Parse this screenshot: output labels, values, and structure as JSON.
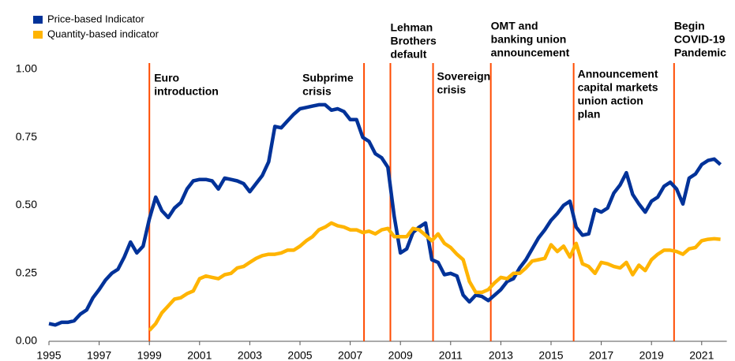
{
  "chart_data": {
    "type": "line",
    "x": [
      1995,
      1995.25,
      1995.5,
      1995.75,
      1996,
      1996.25,
      1996.5,
      1996.75,
      1997,
      1997.25,
      1997.5,
      1997.75,
      1998,
      1998.25,
      1998.5,
      1998.75,
      1999,
      1999.25,
      1999.5,
      1999.75,
      2000,
      2000.25,
      2000.5,
      2000.75,
      2001,
      2001.25,
      2001.5,
      2001.75,
      2002,
      2002.25,
      2002.5,
      2002.75,
      2003,
      2003.25,
      2003.5,
      2003.75,
      2004,
      2004.25,
      2004.5,
      2004.75,
      2005,
      2005.25,
      2005.5,
      2005.75,
      2006,
      2006.25,
      2006.5,
      2006.75,
      2007,
      2007.25,
      2007.5,
      2007.75,
      2008,
      2008.25,
      2008.5,
      2008.75,
      2009,
      2009.25,
      2009.5,
      2009.75,
      2010,
      2010.25,
      2010.5,
      2010.75,
      2011,
      2011.25,
      2011.5,
      2011.75,
      2012,
      2012.25,
      2012.5,
      2012.75,
      2013,
      2013.25,
      2013.5,
      2013.75,
      2014,
      2014.25,
      2014.5,
      2014.75,
      2015,
      2015.25,
      2015.5,
      2015.75,
      2016,
      2016.25,
      2016.5,
      2016.75,
      2017,
      2017.25,
      2017.5,
      2017.75,
      2018,
      2018.25,
      2018.5,
      2018.75,
      2019,
      2019.25,
      2019.5,
      2019.75,
      2020,
      2020.25,
      2020.5,
      2020.75,
      2021,
      2021.25,
      2021.5,
      2021.75
    ],
    "series": [
      {
        "name": "Price-based Indicator",
        "color": "#003299",
        "values": [
          0.065,
          0.06,
          0.07,
          0.07,
          0.075,
          0.1,
          0.115,
          0.16,
          0.19,
          0.225,
          0.25,
          0.265,
          0.31,
          0.365,
          0.325,
          0.35,
          0.45,
          0.53,
          0.48,
          0.455,
          0.49,
          0.51,
          0.56,
          0.59,
          0.595,
          0.595,
          0.59,
          0.56,
          0.6,
          0.595,
          0.59,
          0.58,
          0.55,
          0.58,
          0.61,
          0.66,
          0.79,
          0.785,
          0.81,
          0.835,
          0.855,
          0.86,
          0.865,
          0.87,
          0.87,
          0.85,
          0.855,
          0.845,
          0.815,
          0.815,
          0.75,
          0.735,
          0.69,
          0.675,
          0.64,
          0.46,
          0.325,
          0.34,
          0.4,
          0.42,
          0.435,
          0.3,
          0.29,
          0.245,
          0.25,
          0.24,
          0.17,
          0.145,
          0.17,
          0.165,
          0.15,
          0.17,
          0.19,
          0.22,
          0.23,
          0.27,
          0.3,
          0.34,
          0.38,
          0.41,
          0.445,
          0.47,
          0.5,
          0.515,
          0.42,
          0.39,
          0.395,
          0.485,
          0.475,
          0.49,
          0.545,
          0.575,
          0.62,
          0.54,
          0.505,
          0.475,
          0.515,
          0.53,
          0.57,
          0.585,
          0.56,
          0.505,
          0.6,
          0.615,
          0.65,
          0.665,
          0.67,
          0.65
        ]
      },
      {
        "name": "Quantity-based indicator",
        "color": "#ffb400",
        "values": [
          null,
          null,
          null,
          null,
          null,
          null,
          null,
          null,
          null,
          null,
          null,
          null,
          null,
          null,
          null,
          null,
          0.04,
          0.065,
          0.105,
          0.13,
          0.155,
          0.16,
          0.175,
          0.185,
          0.23,
          0.24,
          0.235,
          0.23,
          0.245,
          0.25,
          0.27,
          0.275,
          0.29,
          0.305,
          0.315,
          0.32,
          0.32,
          0.325,
          0.335,
          0.335,
          0.35,
          0.37,
          0.385,
          0.41,
          0.42,
          0.435,
          0.425,
          0.42,
          0.41,
          0.41,
          0.4,
          0.405,
          0.395,
          0.41,
          0.415,
          0.385,
          0.385,
          0.385,
          0.415,
          0.41,
          0.39,
          0.37,
          0.395,
          0.36,
          0.345,
          0.32,
          0.3,
          0.22,
          0.18,
          0.18,
          0.19,
          0.215,
          0.235,
          0.23,
          0.25,
          0.25,
          0.27,
          0.295,
          0.3,
          0.305,
          0.355,
          0.33,
          0.35,
          0.31,
          0.36,
          0.285,
          0.275,
          0.25,
          0.29,
          0.285,
          0.275,
          0.27,
          0.29,
          0.245,
          0.28,
          0.26,
          0.3,
          0.32,
          0.335,
          0.335,
          0.33,
          0.32,
          0.34,
          0.345,
          0.37,
          0.375,
          0.377,
          0.375
        ]
      }
    ],
    "xlim": [
      1995,
      2022
    ],
    "xticks": [
      1995,
      1997,
      1999,
      2001,
      2003,
      2005,
      2007,
      2009,
      2011,
      2013,
      2015,
      2017,
      2019,
      2021
    ],
    "ylim": [
      0,
      1
    ],
    "yticks": [
      {
        "value": 0,
        "label": "0.00"
      },
      {
        "value": 0.25,
        "label": "0.25"
      },
      {
        "value": 0.5,
        "label": "0.50"
      },
      {
        "value": 0.75,
        "label": "0.75"
      },
      {
        "value": 1,
        "label": "1.00"
      }
    ],
    "grid": false,
    "legend": "top-left",
    "event_color": "#ff4b00",
    "annotations": [
      {
        "x": 1999,
        "lines": [
          "Euro",
          "introduction"
        ]
      },
      {
        "x": 2007.55,
        "lines": [
          "Subprime",
          "crisis"
        ]
      },
      {
        "x": 2008.6,
        "lines": [
          "Lehman",
          "Brothers",
          "default"
        ]
      },
      {
        "x": 2010.3,
        "lines": [
          "Sovereign",
          "crisis"
        ]
      },
      {
        "x": 2012.6,
        "lines": [
          "OMT and",
          "banking union",
          "announcement"
        ]
      },
      {
        "x": 2015.9,
        "lines": [
          "Announcement",
          "capital markets",
          "union action",
          "plan"
        ]
      },
      {
        "x": 2019.9,
        "lines": [
          "Begin",
          "COVID-19",
          "Pandemic"
        ]
      }
    ]
  }
}
